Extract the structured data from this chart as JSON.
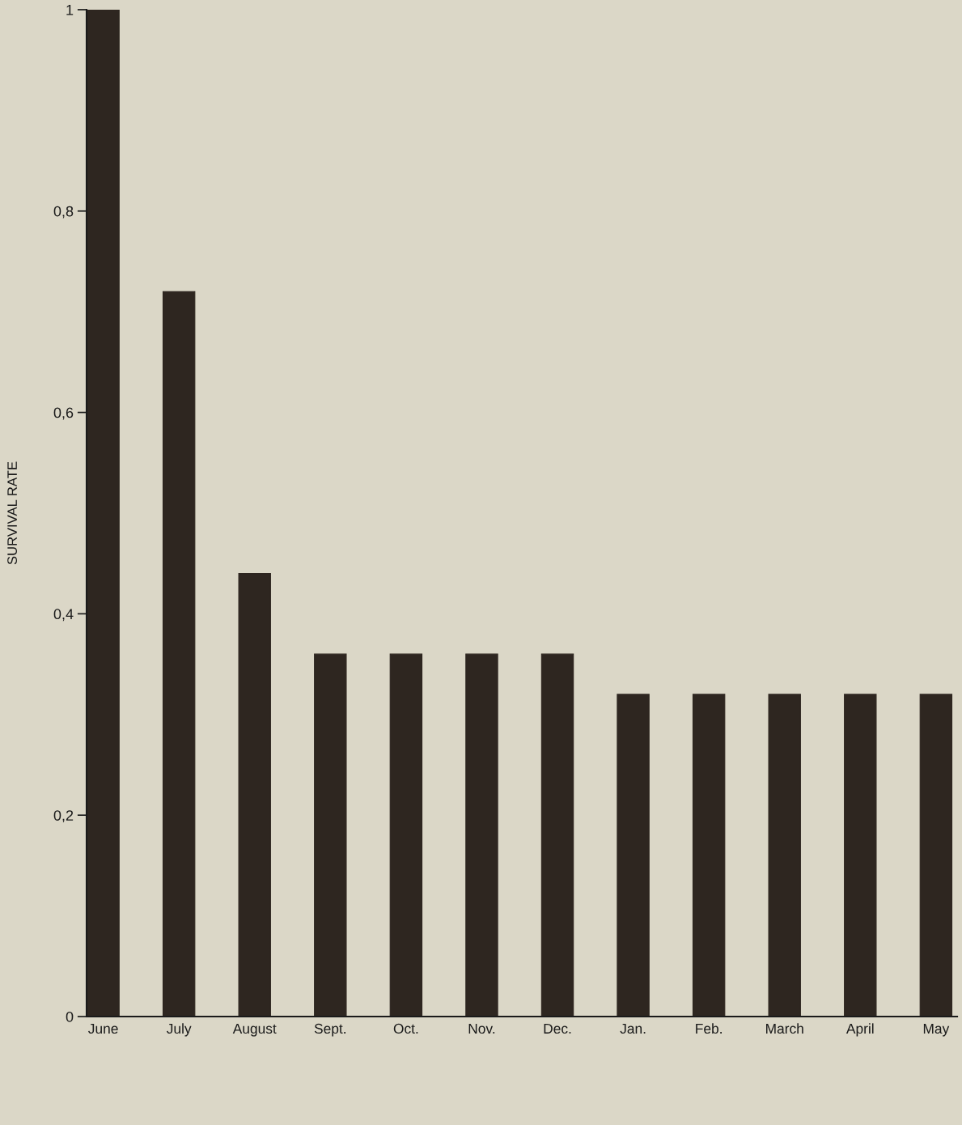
{
  "chart_data": {
    "type": "bar",
    "categories": [
      "June",
      "July",
      "August",
      "Sept.",
      "Oct.",
      "Nov.",
      "Dec.",
      "Jan.",
      "Feb.",
      "March",
      "April",
      "May"
    ],
    "values": [
      1,
      0.72,
      0.44,
      0.36,
      0.36,
      0.36,
      0.36,
      0.32,
      0.32,
      0.32,
      0.32,
      0.32
    ],
    "color": "#2e2620",
    "ylabel": "SURVIVAL RATE",
    "ylim": [
      0,
      1
    ],
    "yticks": [
      0,
      {
        "value": 0.2,
        "label": "0,2"
      },
      {
        "value": 0.4,
        "label": "0,4"
      },
      {
        "value": 0.6,
        "label": "0,6"
      },
      {
        "value": 0.8,
        "label": "0,8"
      },
      1
    ],
    "grid": false
  }
}
